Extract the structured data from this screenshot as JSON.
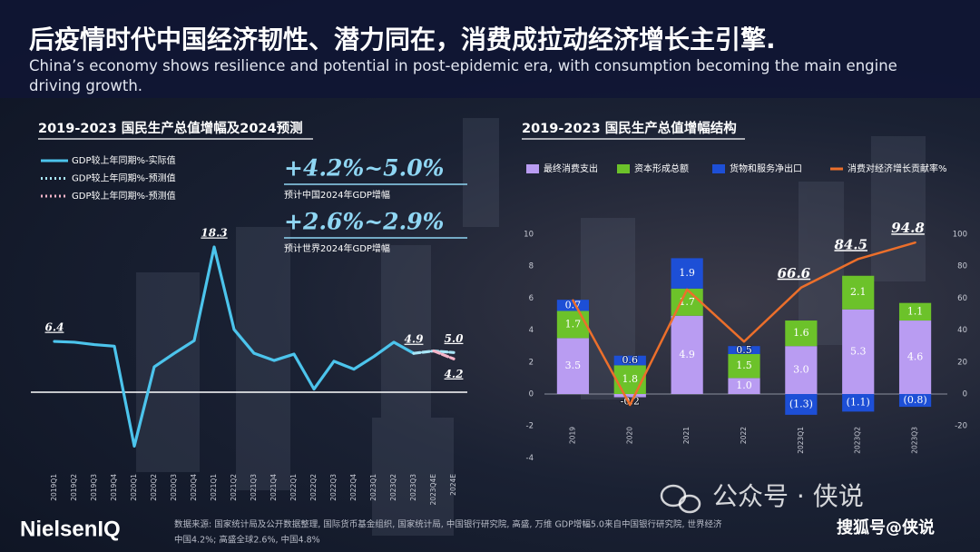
{
  "header": {
    "title": "后疫情时代中国经济韧性、潜力同在，消费成拉动经济增长主引擎.",
    "subtitle": "China’s economy shows resilience and potential in post-epidemic era, with consumption becoming the main engine driving growth."
  },
  "chart_data": [
    {
      "type": "line",
      "title": "2019-2023 国民生产总值增幅及2024预测",
      "categories": [
        "2019Q1",
        "2019Q2",
        "2019Q3",
        "2019Q4",
        "2020Q1",
        "2020Q2",
        "2020Q3",
        "2020Q4",
        "2021Q1",
        "2021Q2",
        "2021Q3",
        "2021Q4",
        "2022Q1",
        "2022Q2",
        "2022Q3",
        "2022Q4",
        "2023Q1",
        "2023Q2",
        "2023Q3",
        "2023Q4E",
        "2024E"
      ],
      "ylim": [
        -10,
        20
      ],
      "legend": "top-left",
      "series": [
        {
          "name": "GDP较上年同期%-实际值",
          "color": "#4cc4ec",
          "dashed": false,
          "values": [
            6.4,
            6.3,
            6.0,
            5.8,
            -6.8,
            3.2,
            4.9,
            6.5,
            18.3,
            7.9,
            4.9,
            4.0,
            4.8,
            0.4,
            3.9,
            2.9,
            4.5,
            6.3,
            4.9,
            null,
            null
          ],
          "value_labels": [
            "6.4",
            null,
            null,
            null,
            null,
            null,
            null,
            null,
            "18.3",
            null,
            null,
            null,
            null,
            null,
            null,
            null,
            null,
            null,
            "4.9",
            null,
            null
          ]
        },
        {
          "name": "GDP较上年同期%-预测值",
          "color": "#a9e6f7",
          "dashed": true,
          "values": [
            null,
            null,
            null,
            null,
            null,
            null,
            null,
            null,
            null,
            null,
            null,
            null,
            null,
            null,
            null,
            null,
            null,
            null,
            4.9,
            5.2,
            5.0
          ],
          "value_labels": [
            null,
            null,
            null,
            null,
            null,
            null,
            null,
            null,
            null,
            null,
            null,
            null,
            null,
            null,
            null,
            null,
            null,
            null,
            null,
            null,
            "5.0"
          ]
        },
        {
          "name": "GDP较上年同期%-预测值",
          "color": "#f5b5c9",
          "dashed": true,
          "values": [
            null,
            null,
            null,
            null,
            null,
            null,
            null,
            null,
            null,
            null,
            null,
            null,
            null,
            null,
            null,
            null,
            null,
            null,
            null,
            5.2,
            4.2
          ],
          "value_labels": [
            null,
            null,
            null,
            null,
            null,
            null,
            null,
            null,
            null,
            null,
            null,
            null,
            null,
            null,
            null,
            null,
            null,
            null,
            null,
            null,
            "4.2"
          ]
        }
      ],
      "annotations": [
        {
          "text": "+4.2%~5.0%",
          "note": "预计中国2024年GDP增幅"
        },
        {
          "text": "+2.6%~2.9%",
          "note": "预计世界2024年GDP增幅"
        }
      ]
    },
    {
      "type": "bar",
      "title": "2019-2023 国民生产总值增幅结构",
      "stacked": true,
      "categories": [
        "2019",
        "2020",
        "2021",
        "2022",
        "2023Q1",
        "2023Q2",
        "2023Q3"
      ],
      "ylim": [
        -4,
        10
      ],
      "yticks": [
        -4,
        -2,
        0,
        2,
        4,
        6,
        8,
        10
      ],
      "y2lim": [
        -40,
        100
      ],
      "y2ticks": [
        -20,
        0,
        20,
        40,
        60,
        80,
        100
      ],
      "legend": "top",
      "series": [
        {
          "name": "最终消费支出",
          "color": "#b99cf2",
          "values": [
            3.5,
            -0.2,
            4.9,
            1.0,
            3.0,
            5.3,
            4.6
          ],
          "value_labels": [
            "3.5",
            "-0.2",
            "4.9",
            "1.0",
            "3.0",
            "5.3",
            "4.6"
          ]
        },
        {
          "name": "资本形成总额",
          "color": "#6cc22a",
          "values": [
            1.7,
            1.8,
            1.7,
            1.5,
            1.6,
            2.1,
            1.1
          ],
          "value_labels": [
            "1.7",
            "1.8",
            "1.7",
            "1.5",
            "1.6",
            "2.1",
            "1.1"
          ]
        },
        {
          "name": "货物和服务净出口",
          "color": "#1d4fd6",
          "values": [
            0.7,
            0.6,
            1.9,
            0.5,
            -1.3,
            -1.1,
            -0.8
          ],
          "value_labels": [
            "0.7",
            "0.6",
            "1.9",
            "0.5",
            "(1.3)",
            "(1.1)",
            "(0.8)"
          ]
        },
        {
          "name": "消费对经济增长贡献率%",
          "color": "#ec6f2b",
          "type": "line",
          "axis": "y2",
          "values": [
            58.6,
            -6.8,
            65.4,
            32.8,
            66.6,
            84.5,
            94.8
          ],
          "value_labels": [
            null,
            null,
            null,
            null,
            "66.6",
            "84.5",
            "94.8"
          ]
        }
      ]
    }
  ],
  "footer": {
    "logo": "NielsenIQ",
    "source": [
      "数据来源: 国家统计局及公开数据整理, 国际货币基金组织, 国家统计局, 中国银行研究院, 高盛, 万维 GDP增幅5.0来自中国银行研究院, 世界经济",
      "中国4.2%; 高盛全球2.6%, 中国4.8%"
    ]
  },
  "watermarks": [
    "公众号 · 侠说",
    "搜狐号@侠说"
  ]
}
